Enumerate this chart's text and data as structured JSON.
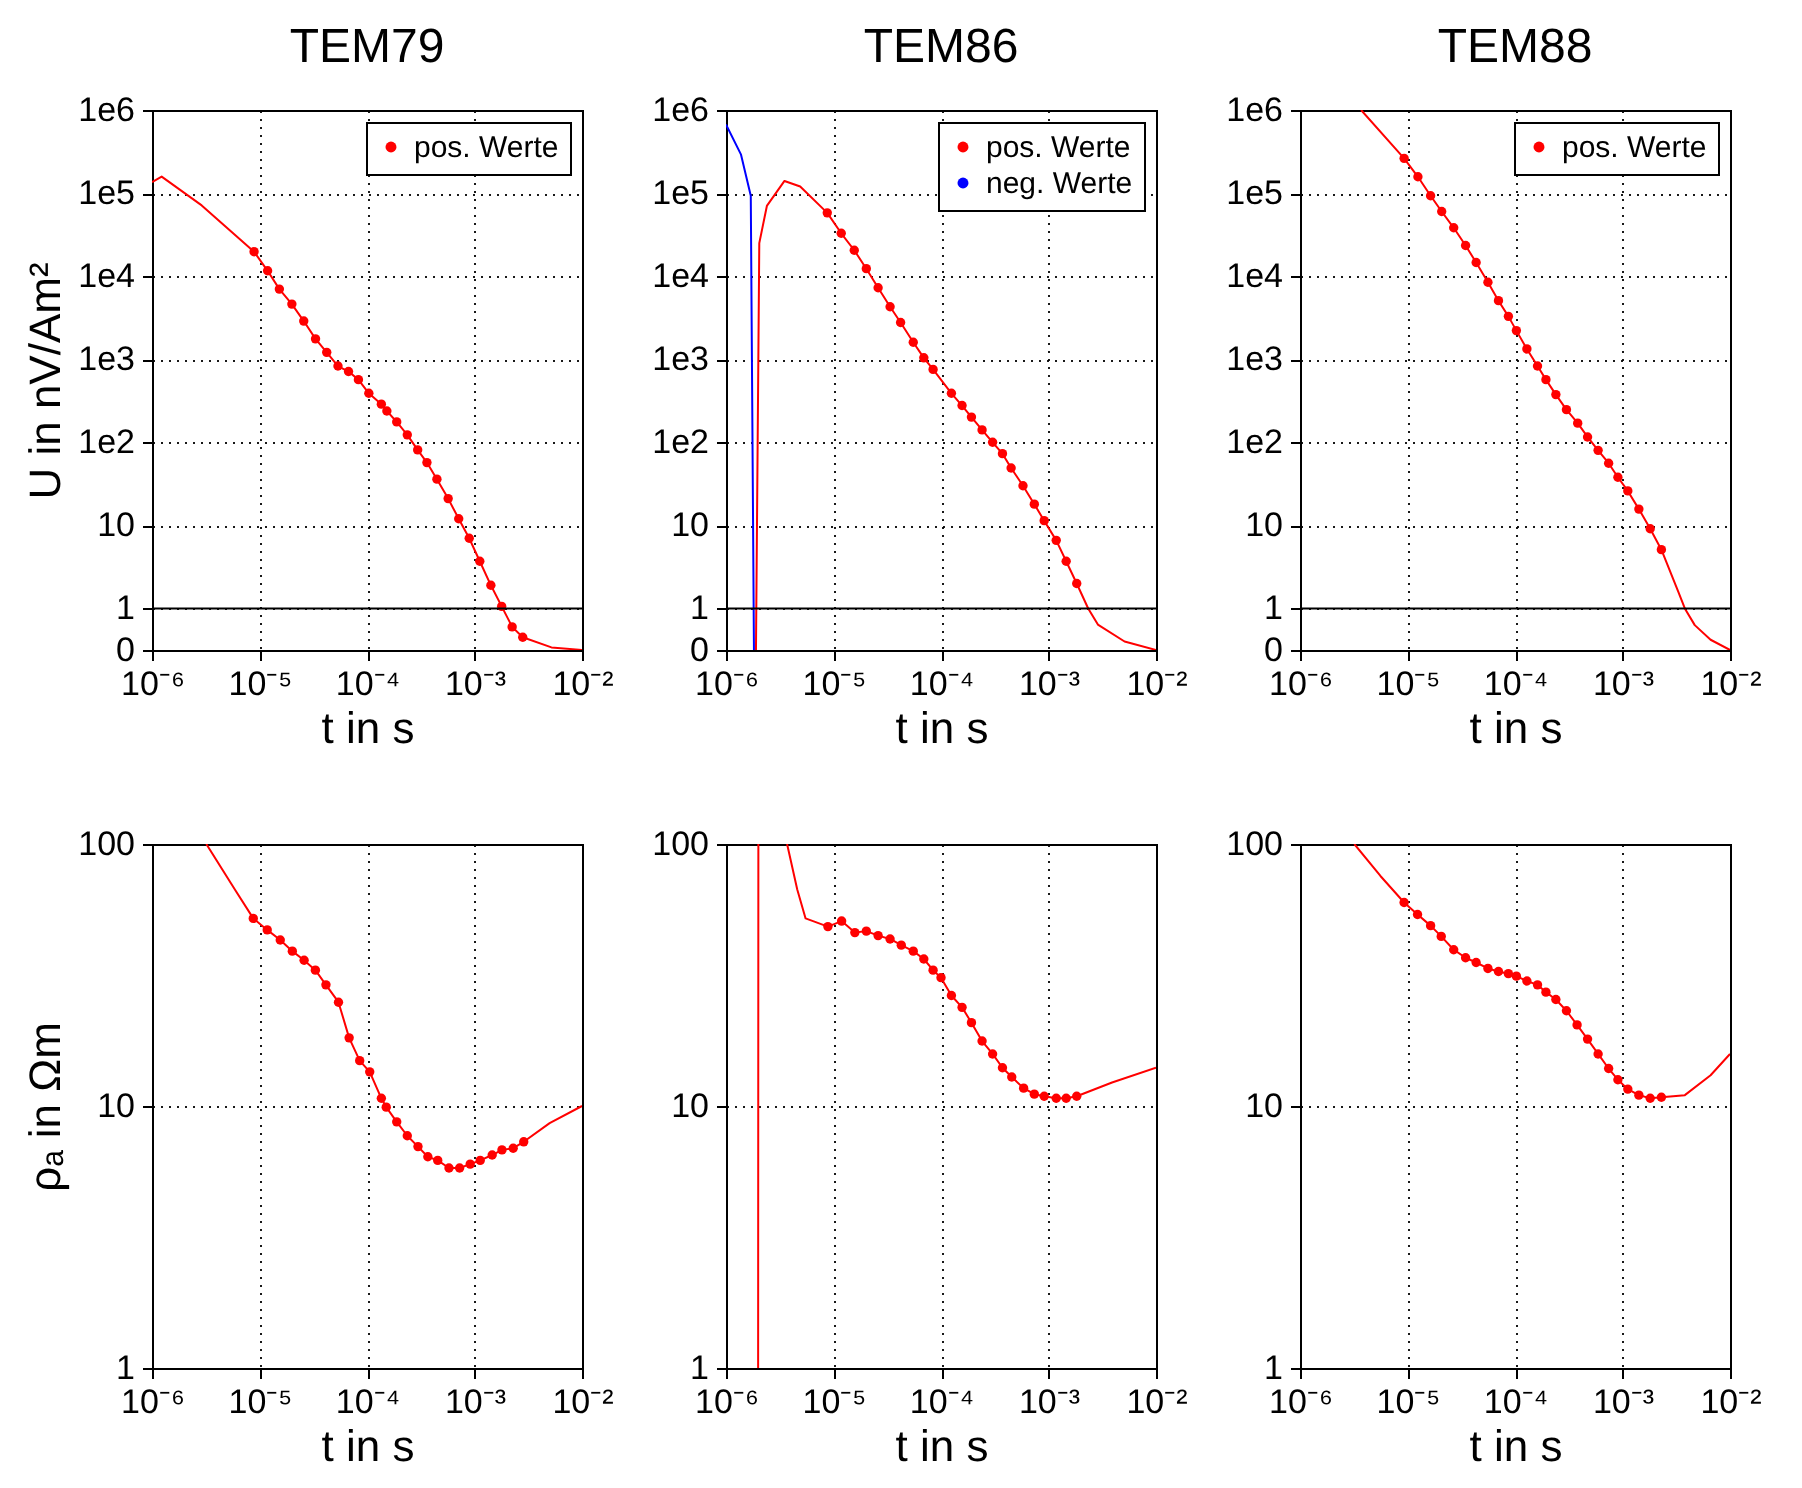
{
  "chart_data": [
    {
      "type": "line",
      "title": "TEM79",
      "xlabel": "t in s",
      "ylabel": "U in nV/Am²",
      "log": "xy",
      "grid": true,
      "legend": "top right",
      "xlim": [
        1e-06,
        0.01
      ],
      "xticks": [
        {
          "value": 1e-06,
          "label": "10⁻⁶"
        },
        {
          "value": 1e-05,
          "label": "10⁻⁵"
        },
        {
          "value": 0.0001,
          "label": "10⁻⁴"
        },
        {
          "value": 0.001,
          "label": "10⁻³"
        },
        {
          "value": 0.01,
          "label": "10⁻²"
        }
      ],
      "ylim": [
        0.3162,
        1000000
      ],
      "yticks": [
        {
          "value": 0.3162,
          "label": "0"
        },
        1,
        10,
        {
          "value": 100,
          "label": "1e2"
        },
        {
          "value": 1000,
          "label": "1e3"
        },
        {
          "value": 10000,
          "label": "1e4"
        },
        {
          "value": 100000,
          "label": "1e5"
        },
        {
          "value": 1000000,
          "label": "1e6"
        }
      ],
      "ref_lines": [
        {
          "axis": "y",
          "value": 1,
          "color": "#000000"
        }
      ],
      "series": [
        {
          "type": "line",
          "color": "#ff0000",
          "x": [
            1e-06,
            1.23e-06,
            2.9e-06,
            8.9e-06,
            1.19e-05,
            1.53e-05,
            2e-05,
            2.58e-05,
            3.32e-05,
            4.22e-05,
            5.37e-05,
            6.73e-05,
            8.32e-05,
            0.000104,
            0.000136,
            0.000153,
            0.000189,
            0.000237,
            0.000296,
            0.000361,
            0.000447,
            0.000569,
            0.000713,
            0.000893,
            0.00112,
            0.00142,
            0.00179,
            0.00224,
            0.00281,
            0.0052,
            0.01
          ],
          "values": [
            135000,
            158000,
            71000,
            19700,
            11600,
            6980,
            4610,
            2880,
            1760,
            1210,
            828,
            711,
            568,
            389,
            288,
            238,
            176,
            123,
            81,
            57,
            36,
            21,
            12,
            7.0,
            3.7,
            1.9,
            1.06,
            0.6,
            0.45,
            0.34,
            0.3162
          ]
        },
        {
          "type": "scatter",
          "name": "pos. Werte",
          "color": "#ff0000",
          "x": [
            8.9e-06,
            1.19e-05,
            1.53e-05,
            2e-05,
            2.58e-05,
            3.32e-05,
            4.22e-05,
            5.37e-05,
            6.73e-05,
            8.32e-05,
            0.000104,
            0.000136,
            0.000153,
            0.000189,
            0.000237,
            0.000296,
            0.000361,
            0.000447,
            0.000569,
            0.000713,
            0.000893,
            0.00112,
            0.00142,
            0.00179,
            0.00224,
            0.00281
          ],
          "values": [
            19700,
            11600,
            6980,
            4610,
            2880,
            1760,
            1210,
            828,
            711,
            568,
            389,
            288,
            238,
            176,
            123,
            81,
            57,
            36,
            21,
            12,
            7.0,
            3.7,
            1.9,
            1.06,
            0.6,
            0.45
          ]
        }
      ]
    },
    {
      "type": "line",
      "title": "TEM86",
      "xlabel": "t in s",
      "log": "xy",
      "grid": true,
      "legend": "top right",
      "xlim": [
        1e-06,
        0.01
      ],
      "xticks": [
        {
          "value": 1e-06,
          "label": "10⁻⁶"
        },
        {
          "value": 1e-05,
          "label": "10⁻⁵"
        },
        {
          "value": 0.0001,
          "label": "10⁻⁴"
        },
        {
          "value": 0.001,
          "label": "10⁻³"
        },
        {
          "value": 0.01,
          "label": "10⁻²"
        }
      ],
      "ylim": [
        0.3162,
        1000000
      ],
      "yticks": [
        {
          "value": 0.3162,
          "label": "0"
        },
        1,
        10,
        {
          "value": 100,
          "label": "1e2"
        },
        {
          "value": 1000,
          "label": "1e3"
        },
        {
          "value": 10000,
          "label": "1e4"
        },
        {
          "value": 100000,
          "label": "1e5"
        },
        {
          "value": 1000000,
          "label": "1e6"
        }
      ],
      "ref_lines": [
        {
          "axis": "y",
          "value": 1,
          "color": "#000000"
        }
      ],
      "series": [
        {
          "type": "line",
          "color": "#ff0000",
          "x": [
            1.9e-06,
            2.04e-06,
            2.4e-06,
            3.5e-06,
            4.9e-06,
            8.75e-06,
            1.18e-05,
            1.56e-05,
            2.02e-05,
            2.6e-05,
            3.36e-05,
            4.21e-05,
            5.52e-05,
            6.92e-05,
            8.44e-05,
            0.000125,
            0.000157,
            0.000192,
            0.000241,
            0.000302,
            0.000373,
            0.000449,
            0.000579,
            0.000738,
            0.000912,
            0.00118,
            0.00146,
            0.00183,
            0.00234,
            0.00288,
            0.0051,
            0.01
          ],
          "values": [
            0.3162,
            25000,
            70000,
            140000,
            120000,
            57800,
            32800,
            20500,
            12300,
            7260,
            4280,
            2770,
            1600,
            1040,
            754,
            389,
            277,
            201,
            141,
            100,
            73,
            49,
            30,
            18,
            11.4,
            6.6,
            3.7,
            2.0,
            1,
            0.64,
            0.4,
            0.3162
          ]
        },
        {
          "type": "scatter",
          "name": "pos. Werte",
          "color": "#ff0000",
          "x": [
            8.75e-06,
            1.18e-05,
            1.56e-05,
            2.02e-05,
            2.6e-05,
            3.36e-05,
            4.21e-05,
            5.52e-05,
            6.92e-05,
            8.44e-05,
            0.000125,
            0.000157,
            0.000192,
            0.000241,
            0.000302,
            0.000373,
            0.000449,
            0.000579,
            0.000738,
            0.000912,
            0.00118,
            0.00146,
            0.00183
          ],
          "values": [
            57800,
            32800,
            20500,
            12300,
            7260,
            4280,
            2770,
            1600,
            1040,
            754,
            389,
            277,
            201,
            141,
            100,
            73,
            49,
            30,
            18,
            11.4,
            6.6,
            3.7,
            2.0
          ]
        },
        {
          "type": "line",
          "name": "neg. Werte",
          "color": "#0000ff",
          "x": [
            1e-06,
            1.38e-06,
            1.7e-06,
            1.82e-06
          ],
          "values": [
            670000,
            290000,
            93000,
            0.3162
          ]
        }
      ]
    },
    {
      "type": "line",
      "title": "TEM88",
      "xlabel": "t in s",
      "log": "xy",
      "grid": true,
      "legend": "top right",
      "xlim": [
        1e-06,
        0.01
      ],
      "xticks": [
        {
          "value": 1e-06,
          "label": "10⁻⁶"
        },
        {
          "value": 1e-05,
          "label": "10⁻⁵"
        },
        {
          "value": 0.0001,
          "label": "10⁻⁴"
        },
        {
          "value": 0.001,
          "label": "10⁻³"
        },
        {
          "value": 0.01,
          "label": "10⁻²"
        }
      ],
      "ylim": [
        0.3162,
        1000000
      ],
      "yticks": [
        {
          "value": 0.3162,
          "label": "0"
        },
        1,
        10,
        {
          "value": 100,
          "label": "1e2"
        },
        {
          "value": 1000,
          "label": "1e3"
        },
        {
          "value": 10000,
          "label": "1e4"
        },
        {
          "value": 100000,
          "label": "1e5"
        },
        {
          "value": 1000000,
          "label": "1e6"
        }
      ],
      "ref_lines": [
        {
          "axis": "y",
          "value": 1,
          "color": "#000000"
        }
      ],
      "series": [
        {
          "type": "line",
          "color": "#ff0000",
          "x": [
            3.7e-06,
            9.3e-06,
            1.25e-05,
            1.64e-05,
            2.08e-05,
            2.69e-05,
            3.47e-05,
            4.35e-05,
            5.6e-05,
            7.02e-05,
            8.68e-05,
            0.000103,
            0.000129,
            0.000162,
            0.000194,
            0.00024,
            0.000301,
            0.000383,
            0.000473,
            0.000593,
            0.000743,
            0.000906,
            0.00112,
            0.00142,
            0.00181,
            0.0023,
            0.0033,
            0.0038,
            0.0047,
            0.0066,
            0.01
          ],
          "values": [
            1000000,
            262000,
            157000,
            93000,
            60000,
            38200,
            23400,
            14600,
            8440,
            5070,
            3280,
            2210,
            1330,
            828,
            568,
            375,
            247,
            170,
            116,
            80,
            56,
            38,
            26,
            15.7,
            9.1,
            5.1,
            1.6,
            1,
            0.63,
            0.42,
            0.3162
          ]
        },
        {
          "type": "scatter",
          "name": "pos. Werte",
          "color": "#ff0000",
          "x": [
            9.3e-06,
            1.25e-05,
            1.64e-05,
            2.08e-05,
            2.69e-05,
            3.47e-05,
            4.35e-05,
            5.6e-05,
            7.02e-05,
            8.68e-05,
            0.000103,
            0.000129,
            0.000162,
            0.000194,
            0.00024,
            0.000301,
            0.000383,
            0.000473,
            0.000593,
            0.000743,
            0.000906,
            0.00112,
            0.00142,
            0.00181,
            0.0023
          ],
          "values": [
            262000,
            157000,
            93000,
            60000,
            38200,
            23400,
            14600,
            8440,
            5070,
            3280,
            2210,
            1330,
            828,
            568,
            375,
            247,
            170,
            116,
            80,
            56,
            38,
            26,
            15.7,
            9.1,
            5.1
          ]
        }
      ]
    },
    {
      "type": "line",
      "xlabel": "t in s",
      "ylabel": "ρₐ in Ωm",
      "log": "xy",
      "grid": true,
      "xlim": [
        1e-06,
        0.01
      ],
      "xticks": [
        {
          "value": 1e-06,
          "label": "10⁻⁶"
        },
        {
          "value": 1e-05,
          "label": "10⁻⁵"
        },
        {
          "value": 0.0001,
          "label": "10⁻⁴"
        },
        {
          "value": 0.001,
          "label": "10⁻³"
        },
        {
          "value": 0.01,
          "label": "10⁻²"
        }
      ],
      "ylim": [
        1,
        100
      ],
      "yticks": [
        1,
        10,
        100
      ],
      "series": [
        {
          "type": "line",
          "color": "#ff0000",
          "x": [
            3.2e-06,
            5.9e-06,
            8.75e-06,
            1.18e-05,
            1.56e-05,
            2.02e-05,
            2.6e-05,
            3.31e-05,
            4.15e-05,
            5.43e-05,
            6.82e-05,
            8.55e-05,
            0.000106,
            0.000136,
            0.000151,
            0.000189,
            0.000237,
            0.000298,
            0.000368,
            0.000455,
            0.000579,
            0.000727,
            0.000912,
            0.00113,
            0.00146,
            0.0018,
            0.00229,
            0.00287,
            0.005,
            0.01
          ],
          "values": [
            100,
            67,
            52,
            47,
            43,
            39,
            36,
            33,
            29,
            24.9,
            18.2,
            14.9,
            13.5,
            10.7,
            9.9,
            8.7,
            7.7,
            7.0,
            6.4,
            6.2,
            5.8,
            5.8,
            6.0,
            6.2,
            6.5,
            6.8,
            6.9,
            7.3,
            8.6,
            10
          ]
        },
        {
          "type": "scatter",
          "color": "#ff0000",
          "x": [
            8.75e-06,
            1.18e-05,
            1.56e-05,
            2.02e-05,
            2.6e-05,
            3.31e-05,
            4.15e-05,
            5.43e-05,
            6.82e-05,
            8.55e-05,
            0.000106,
            0.000136,
            0.000151,
            0.000189,
            0.000237,
            0.000298,
            0.000368,
            0.000455,
            0.000579,
            0.000727,
            0.000912,
            0.00113,
            0.00146,
            0.0018,
            0.00229,
            0.00287
          ],
          "values": [
            52,
            47,
            43,
            39,
            36,
            33,
            29,
            24.9,
            18.2,
            14.9,
            13.5,
            10.7,
            9.9,
            8.7,
            7.7,
            7.0,
            6.4,
            6.2,
            5.8,
            5.8,
            6.0,
            6.2,
            6.5,
            6.8,
            6.9,
            7.3
          ]
        }
      ]
    },
    {
      "type": "line",
      "xlabel": "t in s",
      "log": "xy",
      "grid": true,
      "xlim": [
        1e-06,
        0.01
      ],
      "xticks": [
        {
          "value": 1e-06,
          "label": "10⁻⁶"
        },
        {
          "value": 1e-05,
          "label": "10⁻⁵"
        },
        {
          "value": 0.0001,
          "label": "10⁻⁴"
        },
        {
          "value": 0.001,
          "label": "10⁻³"
        },
        {
          "value": 0.01,
          "label": "10⁻²"
        }
      ],
      "ylim": [
        1,
        100
      ],
      "yticks": [
        1,
        10,
        100
      ],
      "series": [
        {
          "type": "line",
          "color": "#ff0000",
          "x": [
            1.99e-06,
            2e-06,
            3e-06,
            3.7e-06,
            4.6e-06,
            5.5e-06,
            8.87e-06,
            1.19e-05,
            1.58e-05,
            2.02e-05,
            2.6e-05,
            3.36e-05,
            4.27e-05,
            5.52e-05,
            6.92e-05,
            8.44e-05,
            0.0001,
            0.000125,
            0.000157,
            0.000192,
            0.000241,
            0.000302,
            0.000373,
            0.000455,
            0.000587,
            0.000738,
            0.000912,
            0.00118,
            0.00146,
            0.00183,
            0.0039,
            0.01
          ],
          "values": [
            1,
            100,
            null,
            100,
            67,
            52,
            48.4,
            50.8,
            45.9,
            46.5,
            44.7,
            43.4,
            41.1,
            39.0,
            36.4,
            33.0,
            30.9,
            26.4,
            23.8,
            20.8,
            17.7,
            15.8,
            14.0,
            12.9,
            11.7,
            11.1,
            10.9,
            10.7,
            10.7,
            10.9,
            12.3,
            14.0
          ]
        },
        {
          "type": "scatter",
          "color": "#ff0000",
          "x": [
            8.87e-06,
            1.19e-05,
            1.58e-05,
            2.02e-05,
            2.6e-05,
            3.36e-05,
            4.27e-05,
            5.52e-05,
            6.92e-05,
            8.44e-05,
            0.0001,
            0.000125,
            0.000157,
            0.000192,
            0.000241,
            0.000302,
            0.000373,
            0.000455,
            0.000587,
            0.000738,
            0.000912,
            0.00118,
            0.00146,
            0.00183
          ],
          "values": [
            48.4,
            50.8,
            45.9,
            46.5,
            44.7,
            43.4,
            41.1,
            39.0,
            36.4,
            33.0,
            30.9,
            26.4,
            23.8,
            20.8,
            17.7,
            15.8,
            14.0,
            12.9,
            11.7,
            11.1,
            10.9,
            10.7,
            10.7,
            10.9
          ]
        }
      ]
    },
    {
      "type": "line",
      "xlabel": "t in s",
      "log": "xy",
      "grid": true,
      "xlim": [
        1e-06,
        0.01
      ],
      "xticks": [
        {
          "value": 1e-06,
          "label": "10⁻⁶"
        },
        {
          "value": 1e-05,
          "label": "10⁻⁵"
        },
        {
          "value": 0.0001,
          "label": "10⁻⁴"
        },
        {
          "value": 0.001,
          "label": "10⁻³"
        },
        {
          "value": 0.01,
          "label": "10⁻²"
        }
      ],
      "ylim": [
        1,
        100
      ],
      "yticks": [
        1,
        10,
        100
      ],
      "series": [
        {
          "type": "line",
          "color": "#ff0000",
          "x": [
            3.2e-06,
            5.6e-06,
            9.3e-06,
            1.24e-05,
            1.64e-05,
            2.06e-05,
            2.69e-05,
            3.47e-05,
            4.35e-05,
            5.6e-05,
            7.02e-05,
            8.68e-05,
            0.000103,
            0.000129,
            0.000162,
            0.000194,
            0.00024,
            0.000301,
            0.000378,
            0.000473,
            0.000593,
            0.000743,
            0.000906,
            0.00112,
            0.00142,
            0.00181,
            0.0023,
            0.0038,
            0.0066,
            0.01
          ],
          "values": [
            100,
            75.5,
            59.8,
            53.8,
            48.8,
            44.4,
            39.5,
            36.8,
            35.3,
            33.5,
            32.6,
            32.0,
            31.3,
            30.0,
            29.0,
            27.2,
            25.5,
            23.1,
            20.4,
            18.0,
            15.8,
            13.9,
            12.6,
            11.6,
            11.0,
            10.7,
            10.8,
            11,
            13.1,
            15.8
          ]
        },
        {
          "type": "scatter",
          "color": "#ff0000",
          "x": [
            9.3e-06,
            1.24e-05,
            1.64e-05,
            2.06e-05,
            2.69e-05,
            3.47e-05,
            4.35e-05,
            5.6e-05,
            7.02e-05,
            8.68e-05,
            0.000103,
            0.000129,
            0.000162,
            0.000194,
            0.00024,
            0.000301,
            0.000378,
            0.000473,
            0.000593,
            0.000743,
            0.000906,
            0.00112,
            0.00142,
            0.00181,
            0.0023
          ],
          "values": [
            59.8,
            53.8,
            48.8,
            44.4,
            39.5,
            36.8,
            35.3,
            33.5,
            32.6,
            32.0,
            31.3,
            30.0,
            29.0,
            27.2,
            25.5,
            23.1,
            20.4,
            18.0,
            15.8,
            13.9,
            12.6,
            11.6,
            11.0,
            10.7,
            10.8
          ]
        }
      ]
    }
  ]
}
